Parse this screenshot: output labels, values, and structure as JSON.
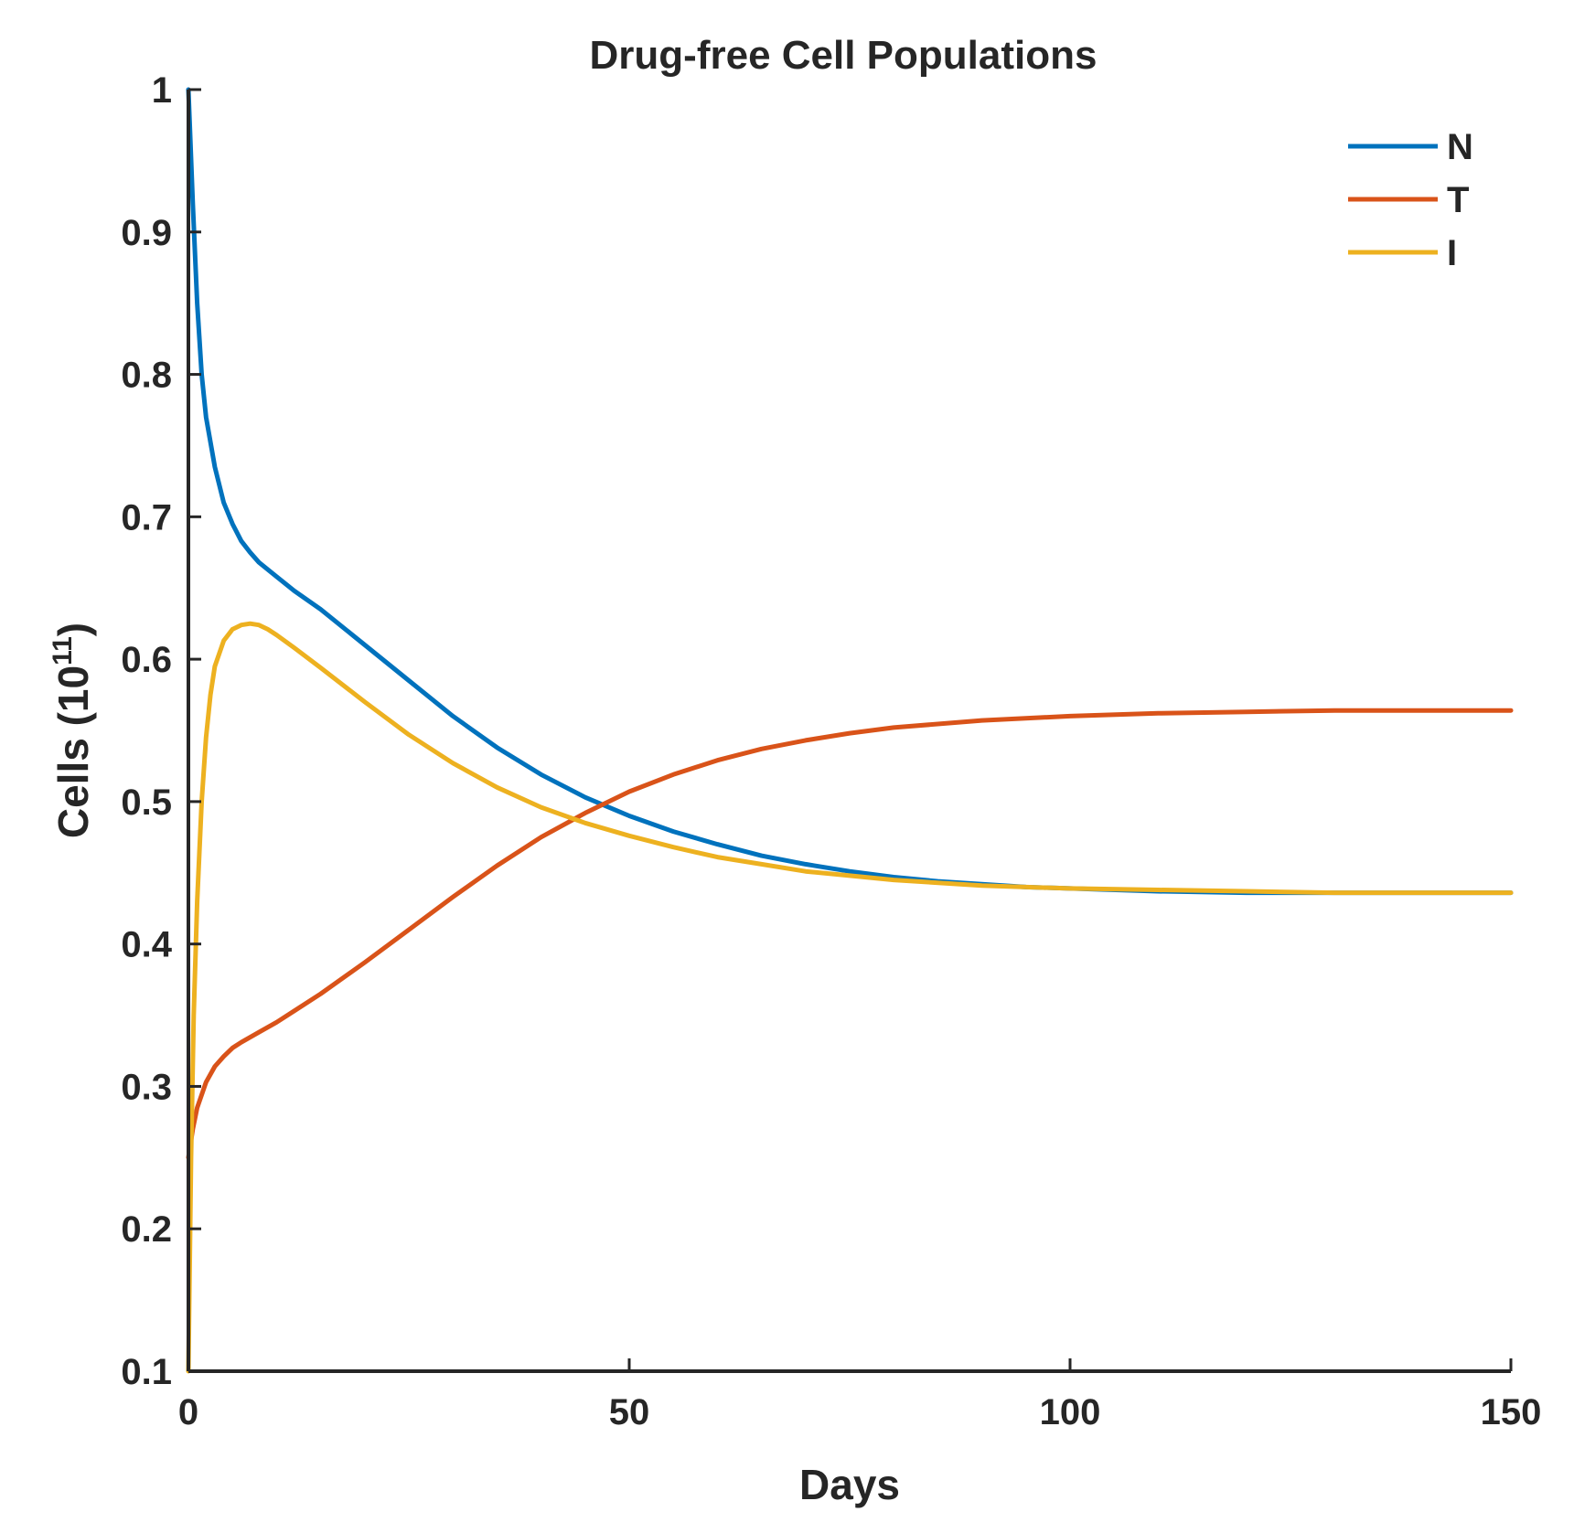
{
  "chart_data": {
    "type": "line",
    "title": "Drug-free Cell Populations",
    "xlabel": "Days",
    "ylabel_base": "Cells (10",
    "ylabel_exp": "11",
    "ylabel_close": ")",
    "xlim": [
      0,
      150
    ],
    "ylim": [
      0.1,
      1
    ],
    "xticks": [
      0,
      50,
      100,
      150
    ],
    "xtick_labels": [
      "0",
      "50",
      "100",
      "150"
    ],
    "yticks": [
      0.1,
      0.2,
      0.3,
      0.4,
      0.5,
      0.6,
      0.7,
      0.8,
      0.9,
      1
    ],
    "ytick_labels": [
      "0.1",
      "0.2",
      "0.3",
      "0.4",
      "0.5",
      "0.6",
      "0.7",
      "0.8",
      "0.9",
      "1"
    ],
    "grid": false,
    "legend_position": "top-right",
    "series": [
      {
        "name": "N",
        "color": "#0072BD",
        "x": [
          0,
          0.5,
          1,
          1.5,
          2,
          3,
          4,
          5,
          6,
          7,
          8,
          10,
          12,
          15,
          20,
          25,
          30,
          35,
          40,
          45,
          50,
          55,
          60,
          65,
          70,
          75,
          80,
          85,
          90,
          95,
          100,
          110,
          120,
          130,
          140,
          150
        ],
        "y": [
          1.0,
          0.92,
          0.85,
          0.8,
          0.77,
          0.735,
          0.71,
          0.695,
          0.683,
          0.675,
          0.668,
          0.658,
          0.648,
          0.635,
          0.61,
          0.585,
          0.56,
          0.538,
          0.519,
          0.503,
          0.49,
          0.479,
          0.47,
          0.462,
          0.456,
          0.451,
          0.447,
          0.444,
          0.442,
          0.44,
          0.439,
          0.437,
          0.436,
          0.436,
          0.436,
          0.436
        ]
      },
      {
        "name": "T",
        "color": "#D95319",
        "x": [
          0,
          0.5,
          1,
          2,
          3,
          4,
          5,
          6,
          8,
          10,
          12,
          15,
          20,
          25,
          30,
          35,
          40,
          45,
          50,
          55,
          60,
          65,
          70,
          75,
          80,
          90,
          100,
          110,
          120,
          130,
          140,
          150
        ],
        "y": [
          0.25,
          0.27,
          0.285,
          0.303,
          0.314,
          0.321,
          0.327,
          0.331,
          0.338,
          0.345,
          0.353,
          0.365,
          0.387,
          0.41,
          0.433,
          0.455,
          0.475,
          0.492,
          0.507,
          0.519,
          0.529,
          0.537,
          0.543,
          0.548,
          0.552,
          0.557,
          0.56,
          0.562,
          0.563,
          0.564,
          0.564,
          0.564
        ]
      },
      {
        "name": "I",
        "color": "#EDB120",
        "x": [
          0,
          0.3,
          0.6,
          1,
          1.5,
          2,
          2.5,
          3,
          4,
          5,
          6,
          7,
          8,
          9,
          10,
          12,
          15,
          20,
          25,
          30,
          35,
          40,
          45,
          50,
          55,
          60,
          65,
          70,
          75,
          80,
          90,
          100,
          110,
          120,
          130,
          140,
          150
        ],
        "y": [
          0.1,
          0.25,
          0.35,
          0.43,
          0.5,
          0.545,
          0.575,
          0.595,
          0.613,
          0.621,
          0.624,
          0.625,
          0.624,
          0.621,
          0.617,
          0.608,
          0.594,
          0.57,
          0.547,
          0.527,
          0.51,
          0.496,
          0.485,
          0.476,
          0.468,
          0.461,
          0.456,
          0.451,
          0.448,
          0.445,
          0.441,
          0.439,
          0.438,
          0.437,
          0.436,
          0.436,
          0.436
        ]
      }
    ]
  }
}
